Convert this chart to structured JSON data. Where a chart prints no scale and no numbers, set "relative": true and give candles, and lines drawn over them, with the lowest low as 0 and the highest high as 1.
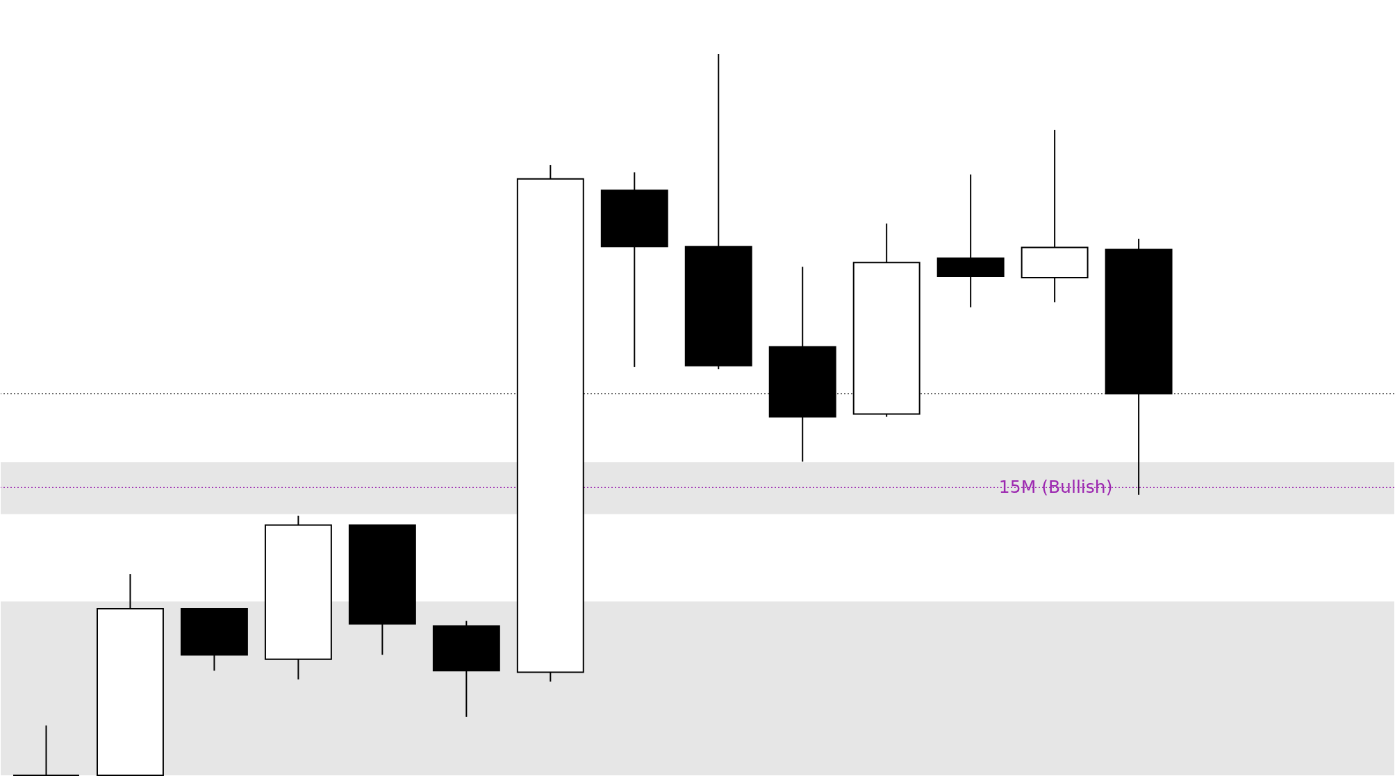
{
  "chart_data": {
    "type": "candlestick",
    "relative": true,
    "categories": [
      null,
      null,
      null,
      null,
      null,
      null,
      null,
      null,
      null,
      null,
      null,
      null,
      null,
      null
    ],
    "ohlc": [
      [
        0,
        0.069,
        0,
        0
      ],
      [
        0,
        0.279,
        0,
        0.231
      ],
      [
        0.231,
        0.231,
        0.145,
        0.167
      ],
      [
        0.161,
        0.36,
        0.133,
        0.347
      ],
      [
        0.347,
        0.347,
        0.167,
        0.21
      ],
      [
        0.207,
        0.214,
        0.081,
        0.145
      ],
      [
        0.143,
        0.846,
        0.13,
        0.827
      ],
      [
        0.811,
        0.836,
        0.566,
        0.733
      ],
      [
        0.733,
        1,
        0.563,
        0.568
      ],
      [
        0.594,
        0.705,
        0.435,
        0.497
      ],
      [
        0.501,
        0.765,
        0.497,
        0.711
      ],
      [
        0.717,
        0.833,
        0.649,
        0.692
      ],
      [
        0.69,
        0.895,
        0.656,
        0.732
      ],
      [
        0.729,
        0.744,
        0.389,
        0.529
      ]
    ],
    "bands": [
      {
        "axis": "y",
        "from": 0,
        "to": 0.241,
        "color": "#e6e6e6"
      },
      {
        "axis": "y",
        "from": 0.362,
        "to": 0.434,
        "color": "#e6e6e6"
      }
    ],
    "ref_lines": [
      {
        "axis": "y",
        "value": 0.399,
        "label": "15M (Bullish)",
        "color": "#9c27b0",
        "line_style": "dotted"
      },
      {
        "axis": "y",
        "value": 0.529,
        "color": "#000000",
        "line_style": "dotted"
      }
    ]
  }
}
